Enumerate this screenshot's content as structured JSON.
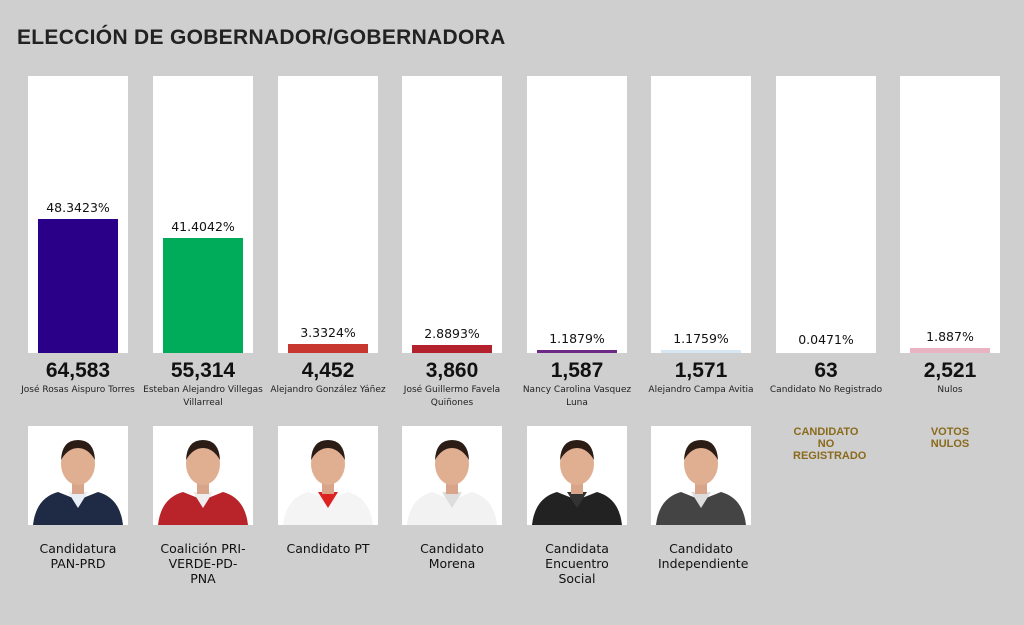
{
  "title": "ELECCIÓN DE GOBERNADOR/GOBERNADORA",
  "chart_data": {
    "type": "bar",
    "categories": [
      "José Rosas Aispuro Torres",
      "Esteban Alejandro Villegas Villarreal",
      "Alejandro González Yáñez",
      "José Guillermo Favela Quiñones",
      "Nancy Carolina Vasquez Luna",
      "Alejandro Campa Avitia",
      "Candidato No Registrado",
      "Nulos"
    ],
    "values": [
      48.3423,
      41.4042,
      3.3324,
      2.8893,
      1.1879,
      1.1759,
      0.0471,
      1.887
    ],
    "ylim": [
      0,
      100
    ]
  },
  "candidates": [
    {
      "pct": "48.3423%",
      "votes": "64,583",
      "name": "José Rosas Aispuro Torres",
      "party": "Candidatura PAN-PRD",
      "color": "#2a0088",
      "suit": "#1f2a44",
      "shirt": "#e8eef5"
    },
    {
      "pct": "41.4042%",
      "votes": "55,314",
      "name": "Esteban Alejandro Villegas Villarreal",
      "party": "Coalición PRI-VERDE-PD-PNA",
      "color": "#00ab5a",
      "suit": "#b8242a",
      "shirt": "#eee"
    },
    {
      "pct": "3.3324%",
      "votes": "4,452",
      "name": "Alejandro González Yáñez",
      "party": "Candidato PT",
      "color": "#c7362f",
      "suit": "#f4f4f4",
      "shirt": "#d22"
    },
    {
      "pct": "2.8893%",
      "votes": "3,860",
      "name": "José Guillermo Favela Quiñones",
      "party": "Candidato Morena",
      "color": "#b3222c",
      "suit": "#f2f2f2",
      "shirt": "#ddd"
    },
    {
      "pct": "1.1879%",
      "votes": "1,587",
      "name": "Nancy Carolina Vasquez Luna",
      "party": "Candidata Encuentro Social",
      "color": "#6c2a86",
      "suit": "#222",
      "shirt": "#333"
    },
    {
      "pct": "1.1759%",
      "votes": "1,571",
      "name": "Alejandro Campa Avitia",
      "party": "Candidato Independiente",
      "color": "#d6e6f2",
      "suit": "#444",
      "shirt": "#ddd"
    },
    {
      "pct": "0.0471%",
      "votes": "63",
      "name": "Candidato No Registrado",
      "special": "CANDIDATO NO REGISTRADO",
      "color": "#ffffff"
    },
    {
      "pct": "1.887%",
      "votes": "2,521",
      "name": "Nulos",
      "special": "VOTOS NULOS",
      "color": "#e8b4c4"
    }
  ]
}
